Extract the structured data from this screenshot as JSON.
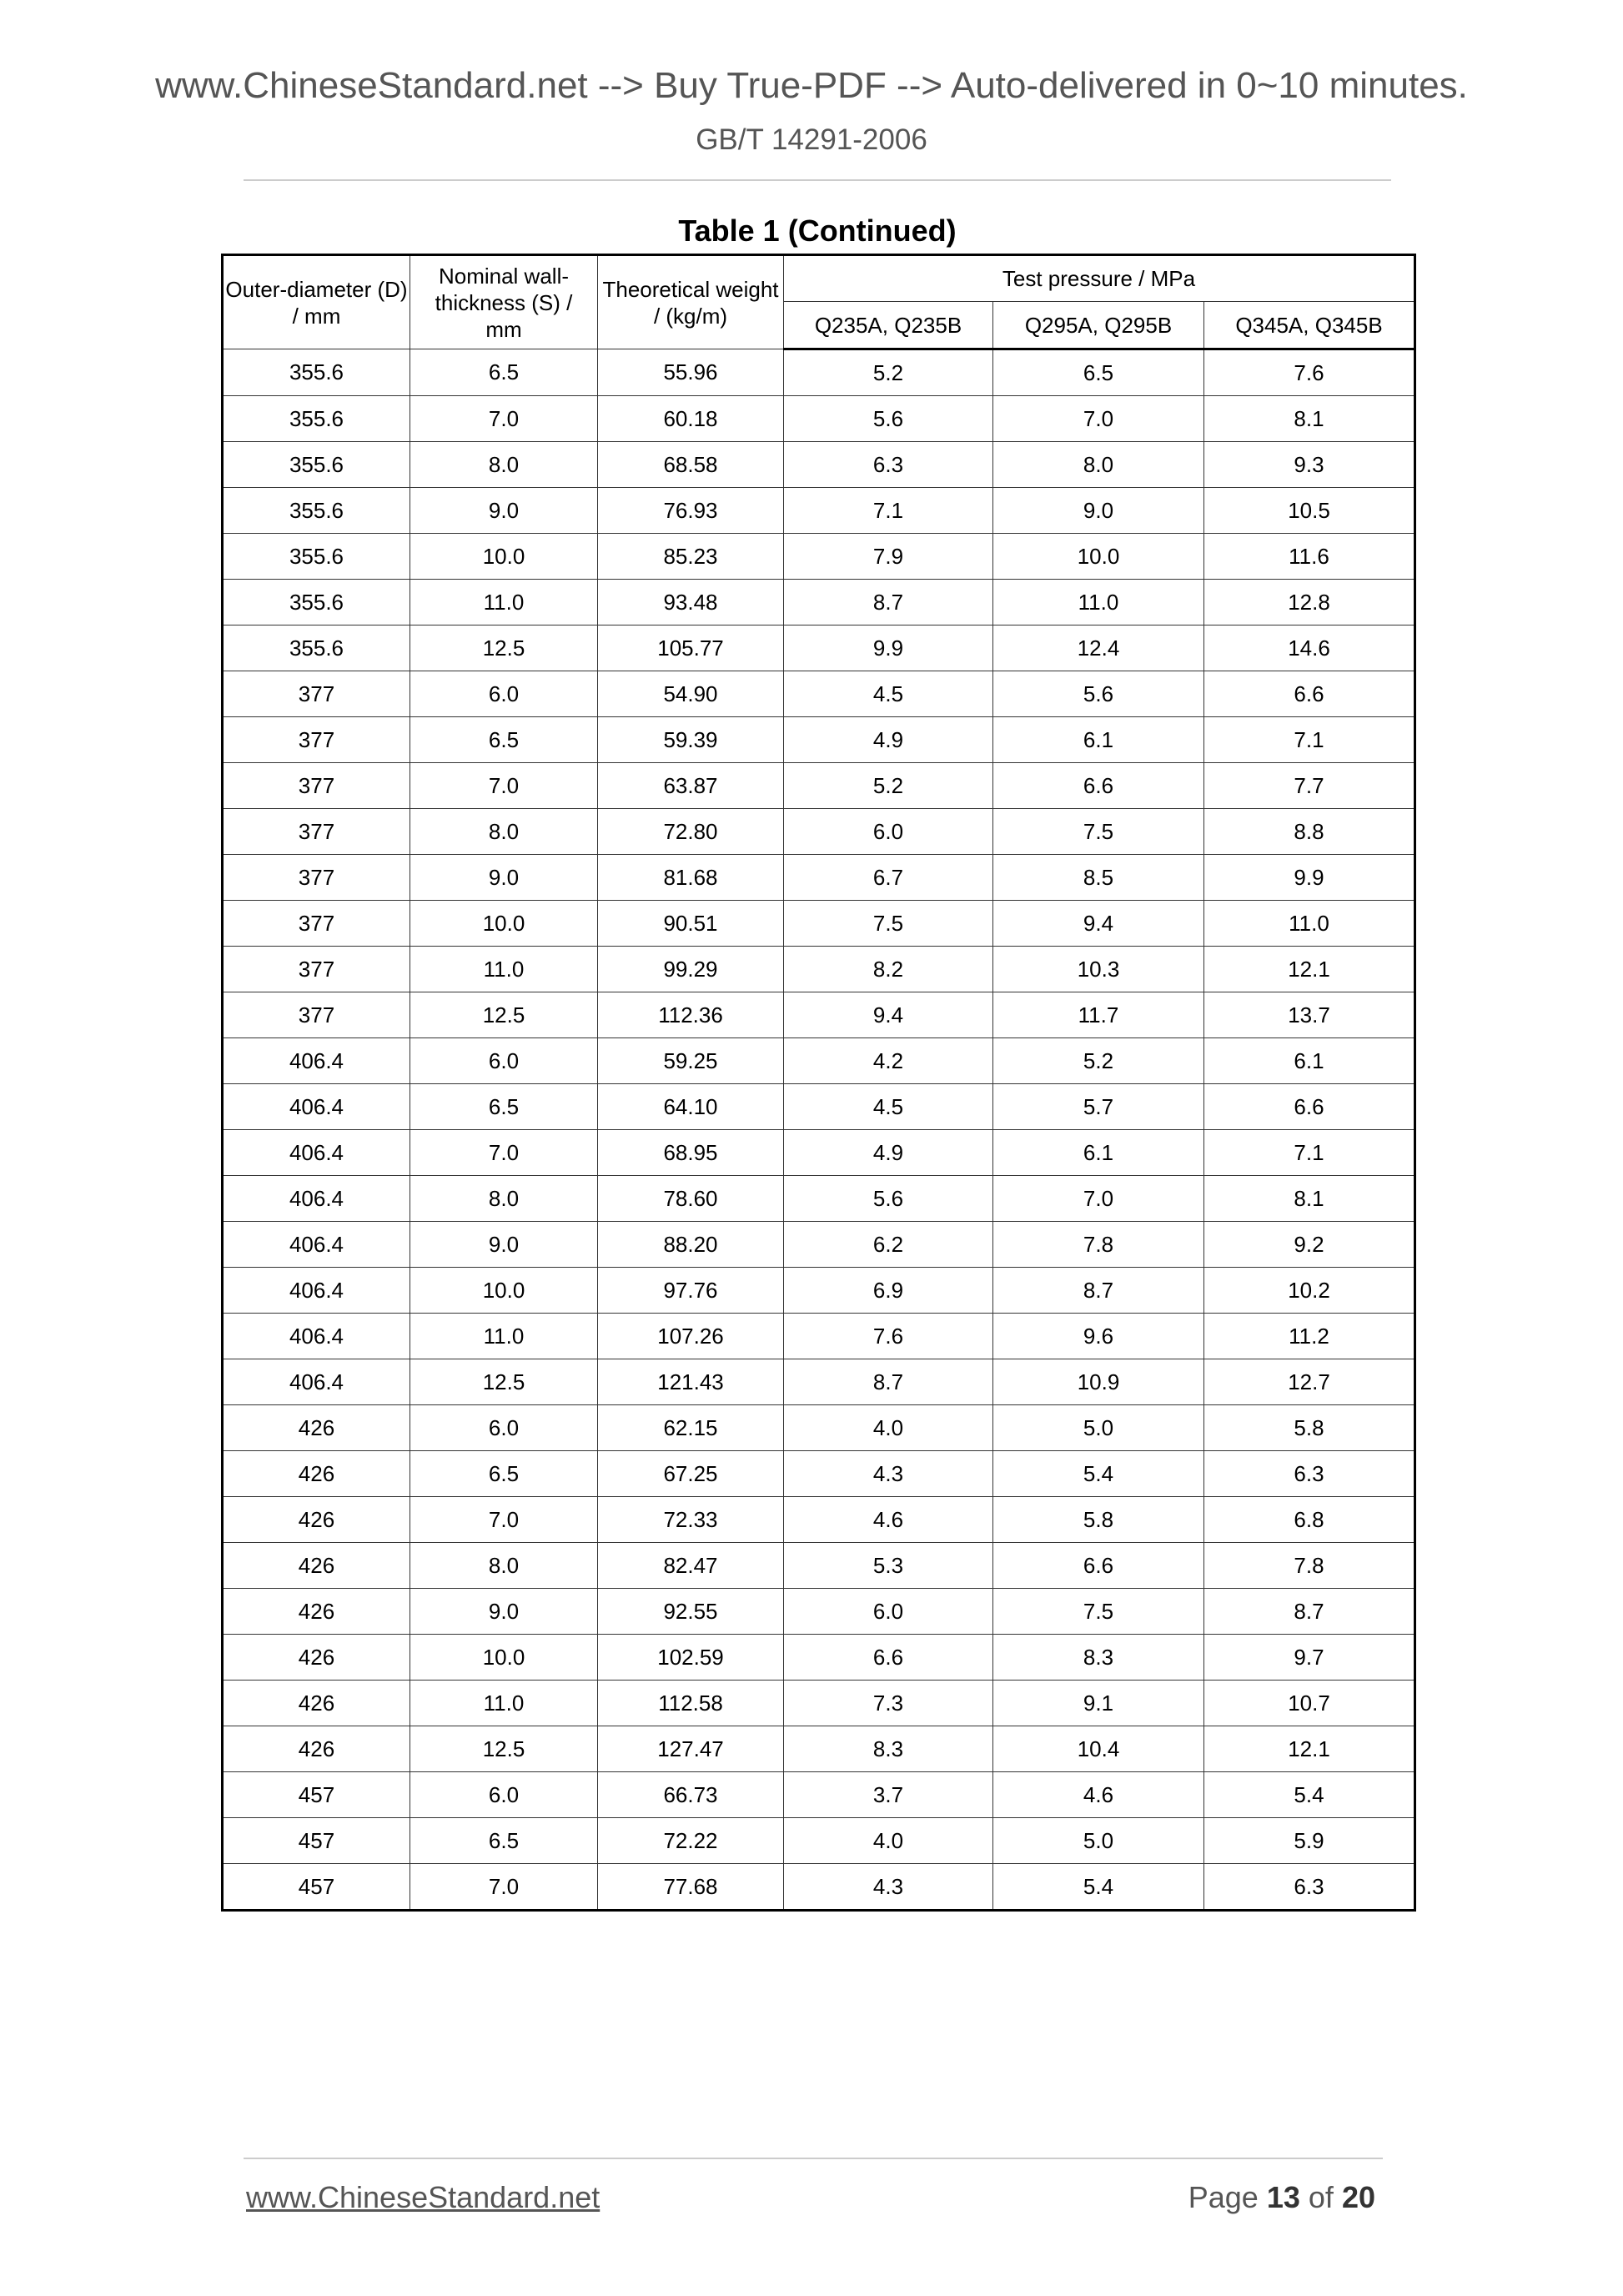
{
  "header": {
    "banner": "www.ChineseStandard.net --> Buy True-PDF --> Auto-delivered in 0~10 minutes.",
    "standard": "GB/T 14291-2006"
  },
  "table": {
    "title": "Table 1 (Continued)",
    "headers": {
      "outer_diameter": "Outer-diameter (D) / mm",
      "wall_thickness": "Nominal wall-thickness (S) / mm",
      "weight": "Theoretical weight / (kg/m)",
      "test_pressure": "Test pressure / MPa",
      "grades": [
        "Q235A, Q235B",
        "Q295A, Q295B",
        "Q345A, Q345B"
      ]
    },
    "rows": [
      [
        "355.6",
        "6.5",
        "55.96",
        "5.2",
        "6.5",
        "7.6"
      ],
      [
        "355.6",
        "7.0",
        "60.18",
        "5.6",
        "7.0",
        "8.1"
      ],
      [
        "355.6",
        "8.0",
        "68.58",
        "6.3",
        "8.0",
        "9.3"
      ],
      [
        "355.6",
        "9.0",
        "76.93",
        "7.1",
        "9.0",
        "10.5"
      ],
      [
        "355.6",
        "10.0",
        "85.23",
        "7.9",
        "10.0",
        "11.6"
      ],
      [
        "355.6",
        "11.0",
        "93.48",
        "8.7",
        "11.0",
        "12.8"
      ],
      [
        "355.6",
        "12.5",
        "105.77",
        "9.9",
        "12.4",
        "14.6"
      ],
      [
        "377",
        "6.0",
        "54.90",
        "4.5",
        "5.6",
        "6.6"
      ],
      [
        "377",
        "6.5",
        "59.39",
        "4.9",
        "6.1",
        "7.1"
      ],
      [
        "377",
        "7.0",
        "63.87",
        "5.2",
        "6.6",
        "7.7"
      ],
      [
        "377",
        "8.0",
        "72.80",
        "6.0",
        "7.5",
        "8.8"
      ],
      [
        "377",
        "9.0",
        "81.68",
        "6.7",
        "8.5",
        "9.9"
      ],
      [
        "377",
        "10.0",
        "90.51",
        "7.5",
        "9.4",
        "11.0"
      ],
      [
        "377",
        "11.0",
        "99.29",
        "8.2",
        "10.3",
        "12.1"
      ],
      [
        "377",
        "12.5",
        "112.36",
        "9.4",
        "11.7",
        "13.7"
      ],
      [
        "406.4",
        "6.0",
        "59.25",
        "4.2",
        "5.2",
        "6.1"
      ],
      [
        "406.4",
        "6.5",
        "64.10",
        "4.5",
        "5.7",
        "6.6"
      ],
      [
        "406.4",
        "7.0",
        "68.95",
        "4.9",
        "6.1",
        "7.1"
      ],
      [
        "406.4",
        "8.0",
        "78.60",
        "5.6",
        "7.0",
        "8.1"
      ],
      [
        "406.4",
        "9.0",
        "88.20",
        "6.2",
        "7.8",
        "9.2"
      ],
      [
        "406.4",
        "10.0",
        "97.76",
        "6.9",
        "8.7",
        "10.2"
      ],
      [
        "406.4",
        "11.0",
        "107.26",
        "7.6",
        "9.6",
        "11.2"
      ],
      [
        "406.4",
        "12.5",
        "121.43",
        "8.7",
        "10.9",
        "12.7"
      ],
      [
        "426",
        "6.0",
        "62.15",
        "4.0",
        "5.0",
        "5.8"
      ],
      [
        "426",
        "6.5",
        "67.25",
        "4.3",
        "5.4",
        "6.3"
      ],
      [
        "426",
        "7.0",
        "72.33",
        "4.6",
        "5.8",
        "6.8"
      ],
      [
        "426",
        "8.0",
        "82.47",
        "5.3",
        "6.6",
        "7.8"
      ],
      [
        "426",
        "9.0",
        "92.55",
        "6.0",
        "7.5",
        "8.7"
      ],
      [
        "426",
        "10.0",
        "102.59",
        "6.6",
        "8.3",
        "9.7"
      ],
      [
        "426",
        "11.0",
        "112.58",
        "7.3",
        "9.1",
        "10.7"
      ],
      [
        "426",
        "12.5",
        "127.47",
        "8.3",
        "10.4",
        "12.1"
      ],
      [
        "457",
        "6.0",
        "66.73",
        "3.7",
        "4.6",
        "5.4"
      ],
      [
        "457",
        "6.5",
        "72.22",
        "4.0",
        "5.0",
        "5.9"
      ],
      [
        "457",
        "7.0",
        "77.68",
        "4.3",
        "5.4",
        "6.3"
      ]
    ]
  },
  "footer": {
    "site_link": "www.ChineseStandard.net",
    "page_label": "Page",
    "page_current": "13",
    "of_label": "of",
    "page_total": "20"
  }
}
